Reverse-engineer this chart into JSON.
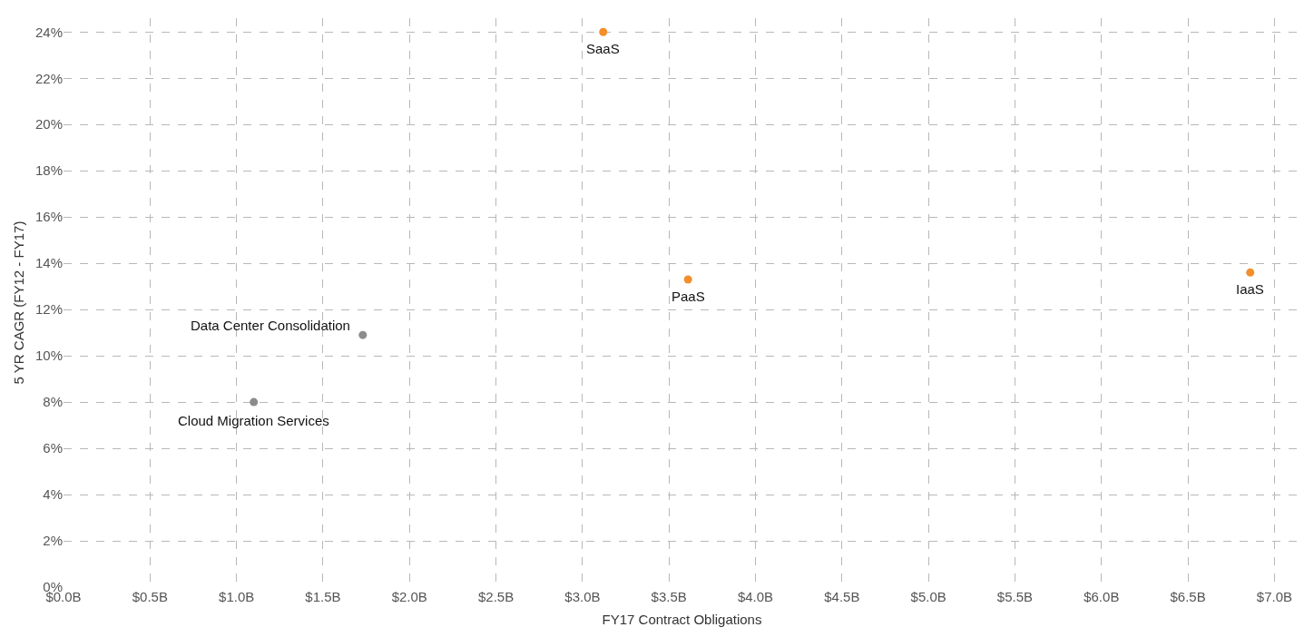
{
  "chart_data": {
    "type": "scatter",
    "xlabel": "FY17 Contract Obligations",
    "ylabel": "5 YR CAGR (FY12 - FY17)",
    "series": [
      {
        "color": "#f28e2b",
        "x": [
          3.12,
          3.61,
          6.86
        ],
        "values": [
          24.0,
          13.3,
          13.6
        ]
      },
      {
        "color": "#8c8c8c",
        "x": [
          1.73,
          1.1
        ],
        "values": [
          10.9,
          8.0
        ]
      }
    ],
    "annotations": [
      {
        "text": "SaaS",
        "x": 3.12,
        "y": 24.0
      },
      {
        "text": "PaaS",
        "x": 3.61,
        "y": 13.3
      },
      {
        "text": "IaaS",
        "x": 6.86,
        "y": 13.6
      },
      {
        "text": "Data Center Consolidation",
        "x": 1.73,
        "y": 10.9
      },
      {
        "text": "Cloud Migration Services",
        "x": 1.1,
        "y": 8.0
      }
    ],
    "xlim": [
      0,
      7.15
    ],
    "ylim": [
      0,
      24.6
    ],
    "xticks": [
      {
        "value": 0,
        "label": "$0.0B"
      },
      {
        "value": 0.5,
        "label": "$0.5B"
      },
      {
        "value": 1,
        "label": "$1.0B"
      },
      {
        "value": 1.5,
        "label": "$1.5B"
      },
      {
        "value": 2,
        "label": "$2.0B"
      },
      {
        "value": 2.5,
        "label": "$2.5B"
      },
      {
        "value": 3,
        "label": "$3.0B"
      },
      {
        "value": 3.5,
        "label": "$3.5B"
      },
      {
        "value": 4,
        "label": "$4.0B"
      },
      {
        "value": 4.5,
        "label": "$4.5B"
      },
      {
        "value": 5,
        "label": "$5.0B"
      },
      {
        "value": 5.5,
        "label": "$5.5B"
      },
      {
        "value": 6,
        "label": "$6.0B"
      },
      {
        "value": 6.5,
        "label": "$6.5B"
      },
      {
        "value": 7,
        "label": "$7.0B"
      }
    ],
    "yticks": [
      {
        "value": 0,
        "label": "0%"
      },
      {
        "value": 2,
        "label": "2%"
      },
      {
        "value": 4,
        "label": "4%"
      },
      {
        "value": 6,
        "label": "6%"
      },
      {
        "value": 8,
        "label": "8%"
      },
      {
        "value": 10,
        "label": "10%"
      },
      {
        "value": 12,
        "label": "12%"
      },
      {
        "value": 14,
        "label": "14%"
      },
      {
        "value": 16,
        "label": "16%"
      },
      {
        "value": 18,
        "label": "18%"
      },
      {
        "value": 20,
        "label": "20%"
      },
      {
        "value": 22,
        "label": "22%"
      },
      {
        "value": 24,
        "label": "24%"
      }
    ],
    "grid": true,
    "marker": "circle"
  }
}
